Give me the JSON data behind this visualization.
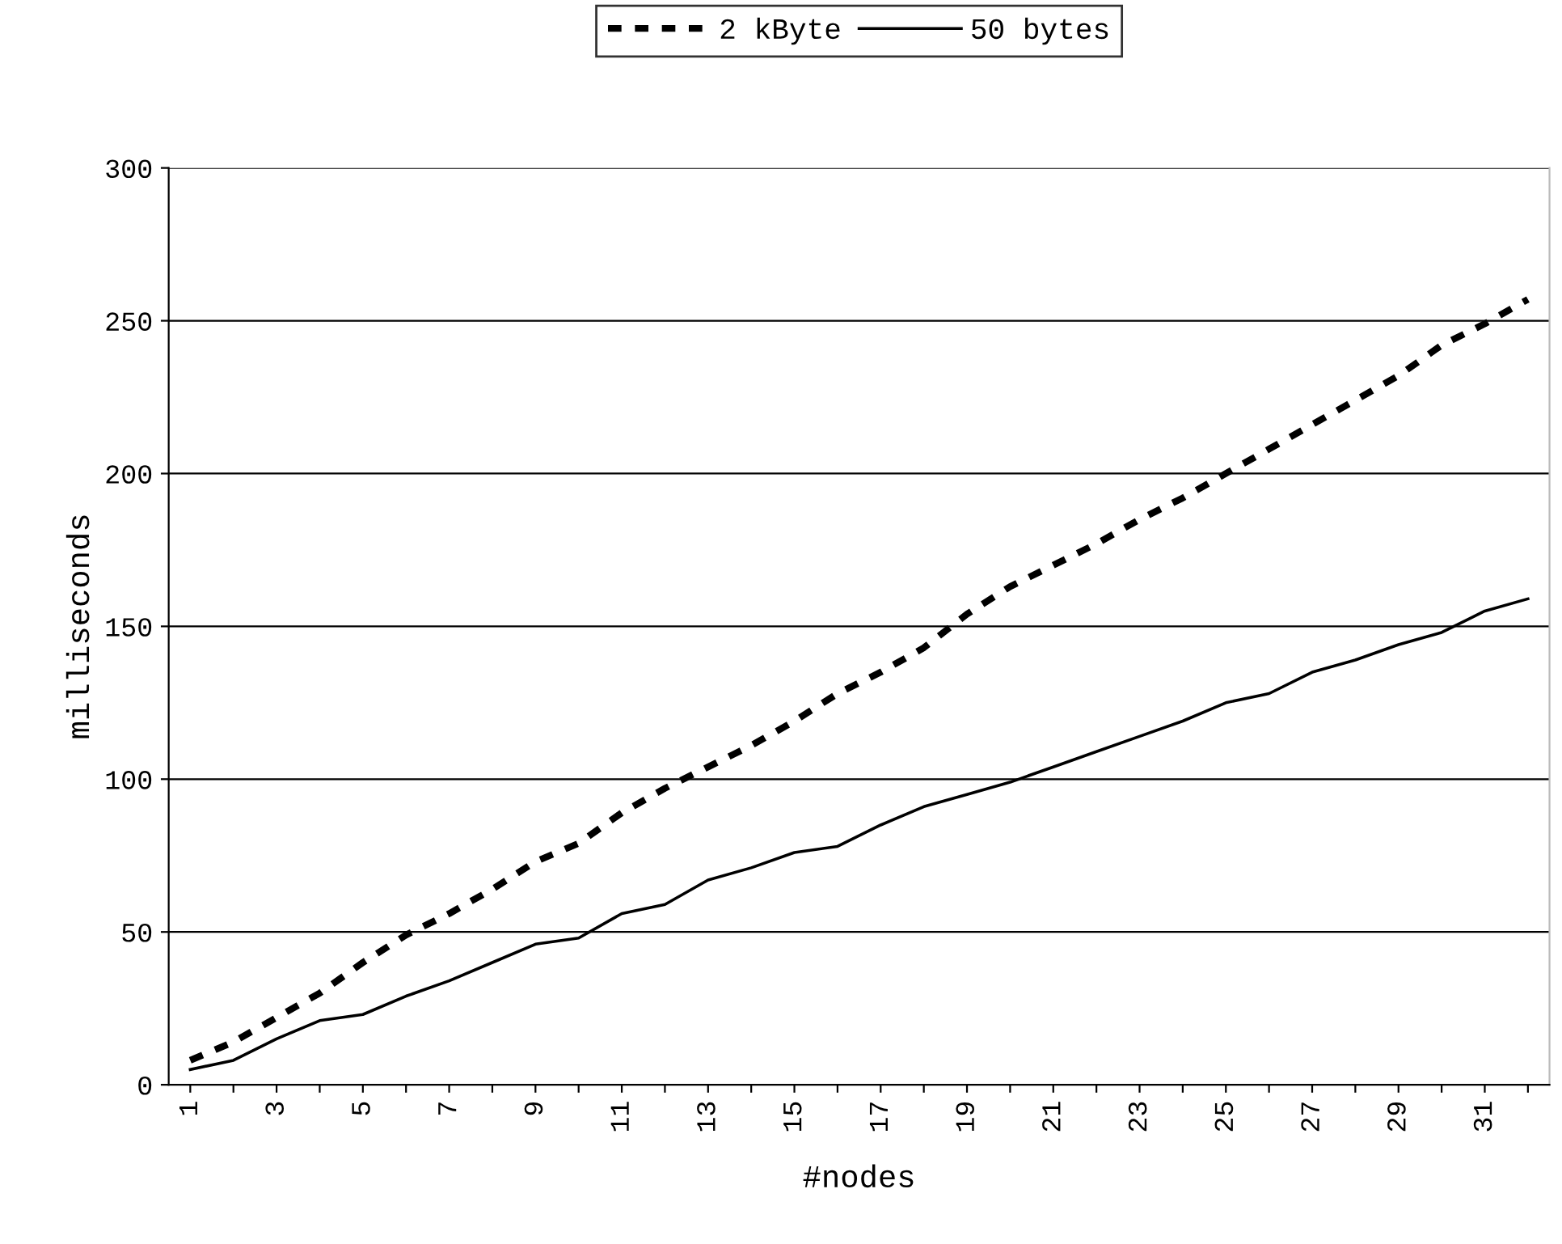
{
  "chart_data": {
    "type": "line",
    "xlabel": "#nodes",
    "ylabel": "milliseconds",
    "categories": [
      "1",
      null,
      "3",
      null,
      "5",
      null,
      "7",
      null,
      "9",
      null,
      "11",
      null,
      "13",
      null,
      "15",
      null,
      "17",
      null,
      "19",
      null,
      "21",
      null,
      "23",
      null,
      "25",
      null,
      "27",
      null,
      "29",
      null,
      "31",
      null
    ],
    "series": [
      {
        "name": "2 kByte",
        "color": "#000000",
        "line_style": "dotted",
        "values": [
          8,
          14,
          22,
          30,
          40,
          49,
          56,
          64,
          73,
          79,
          89,
          97,
          104,
          111,
          119,
          128,
          135,
          143,
          154,
          163,
          170,
          177,
          185,
          192,
          200,
          208,
          216,
          224,
          232,
          242,
          249,
          257
        ]
      },
      {
        "name": "50 bytes",
        "color": "#000000",
        "line_style": "solid",
        "values": [
          5,
          8,
          15,
          21,
          23,
          29,
          34,
          40,
          46,
          48,
          56,
          59,
          67,
          71,
          76,
          78,
          85,
          91,
          95,
          99,
          104,
          109,
          114,
          119,
          125,
          128,
          135,
          139,
          144,
          148,
          155,
          159
        ]
      }
    ],
    "ylim": [
      0,
      300
    ],
    "yticks": [
      0,
      50,
      100,
      150,
      200,
      250,
      300
    ],
    "grid": "y",
    "legend": "top",
    "marker": "none"
  }
}
